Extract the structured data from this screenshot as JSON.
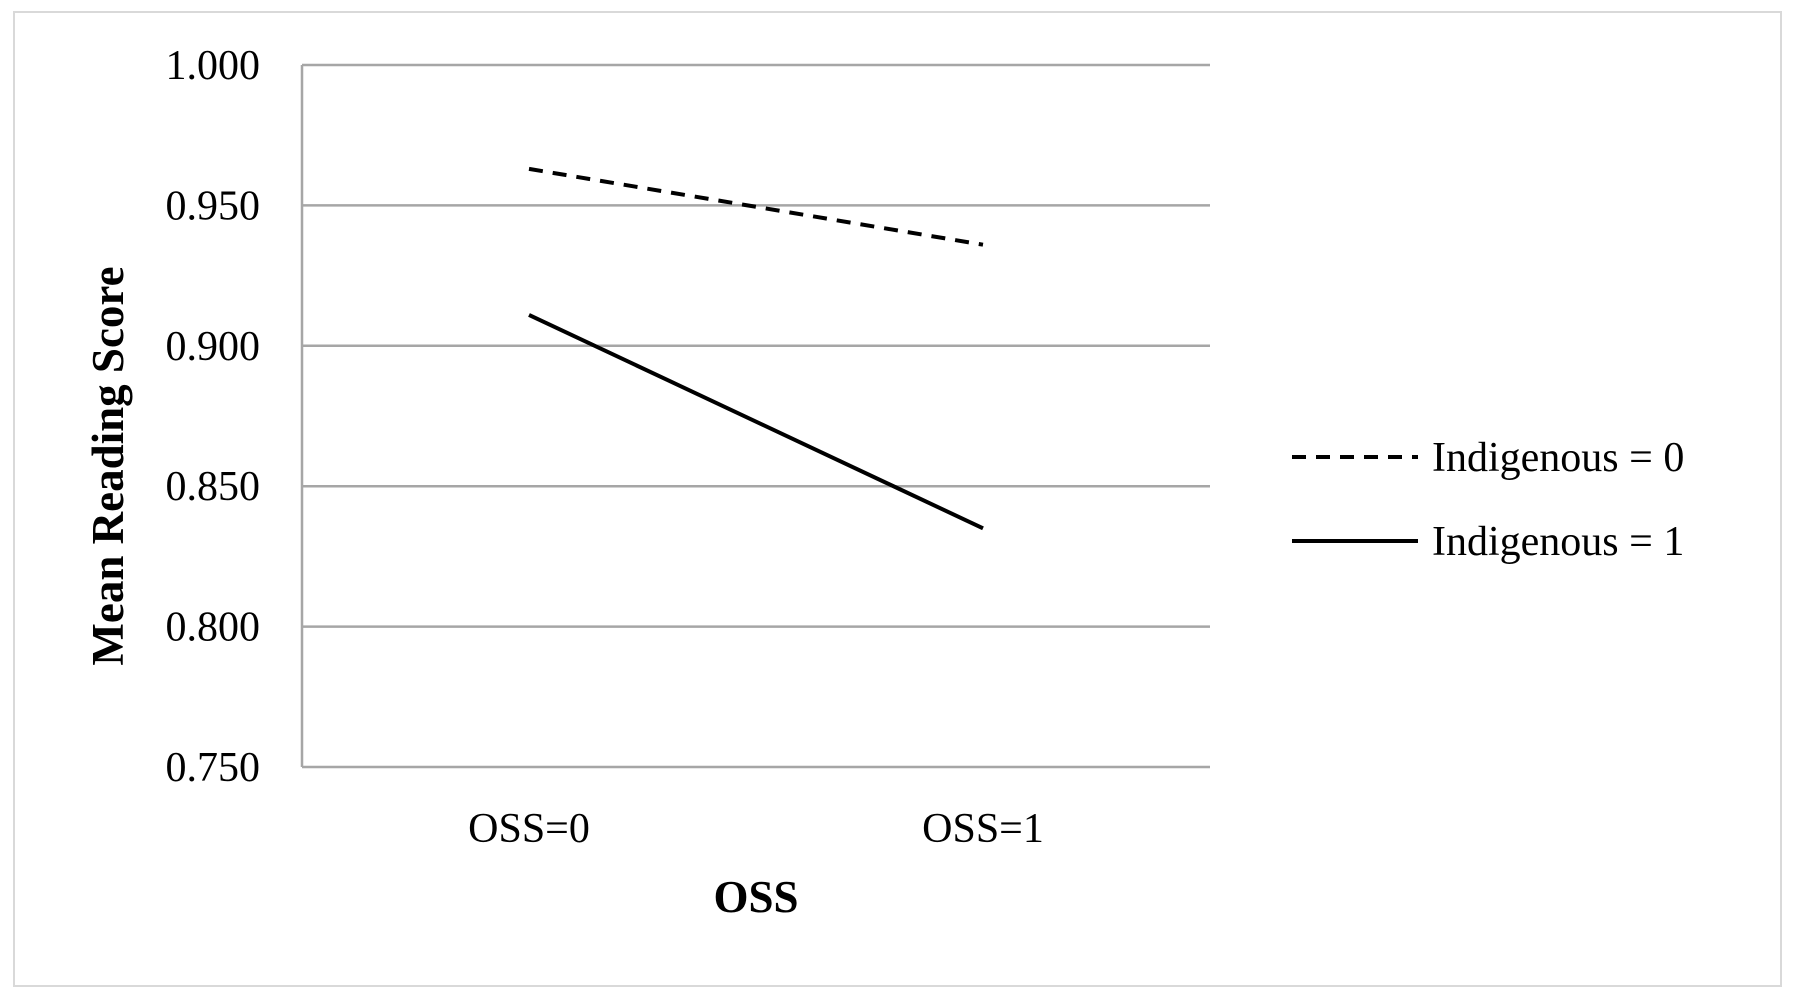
{
  "chart_data": {
    "type": "line",
    "title": "",
    "xlabel": "OSS",
    "ylabel": "Mean Reading Score",
    "categories": [
      "OSS=0",
      "OSS=1"
    ],
    "series": [
      {
        "name": "Indigenous = 0",
        "values": [
          0.963,
          0.936
        ],
        "line_style": "dashed",
        "color": "#000000"
      },
      {
        "name": "Indigenous = 1",
        "values": [
          0.911,
          0.835
        ],
        "line_style": "solid",
        "color": "#000000"
      }
    ],
    "ylim": [
      0.75,
      1.0
    ],
    "yticks": [
      "0.750",
      "0.800",
      "0.850",
      "0.900",
      "0.950",
      "1.000"
    ],
    "grid": true,
    "gridline_color": "#a6a6a6",
    "legend_position": "right"
  }
}
